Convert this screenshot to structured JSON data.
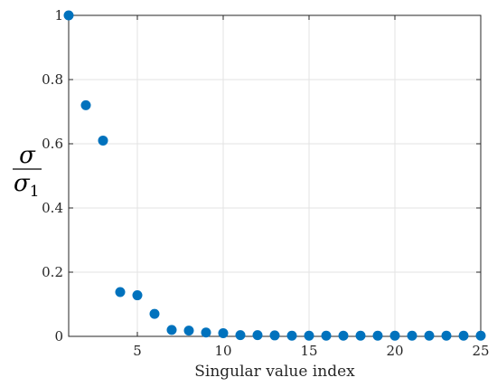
{
  "chart_data": {
    "type": "scatter",
    "xlabel": "Singular value index",
    "ylabel": {
      "numerator": "σ",
      "denominator": "σ",
      "denominator_subscript": "1"
    },
    "xlim": [
      1,
      25
    ],
    "ylim": [
      0,
      1
    ],
    "xticks": [
      5,
      10,
      15,
      20,
      25
    ],
    "yticks": [
      0,
      0.2,
      0.4,
      0.6,
      0.8,
      1
    ],
    "ytick_labels": [
      "0",
      "0.2",
      "0.4",
      "0.6",
      "0.8",
      "1"
    ],
    "grid": true,
    "marker_color": "#0072BD",
    "x": [
      1,
      2,
      3,
      4,
      5,
      6,
      7,
      8,
      9,
      10,
      11,
      12,
      13,
      14,
      15,
      16,
      17,
      18,
      19,
      20,
      21,
      22,
      23,
      24,
      25
    ],
    "y": [
      1.0,
      0.72,
      0.61,
      0.138,
      0.128,
      0.07,
      0.02,
      0.018,
      0.012,
      0.01,
      0.004,
      0.004,
      0.003,
      0.002,
      0.002,
      0.002,
      0.002,
      0.002,
      0.002,
      0.002,
      0.002,
      0.002,
      0.002,
      0.002,
      0.002
    ]
  }
}
